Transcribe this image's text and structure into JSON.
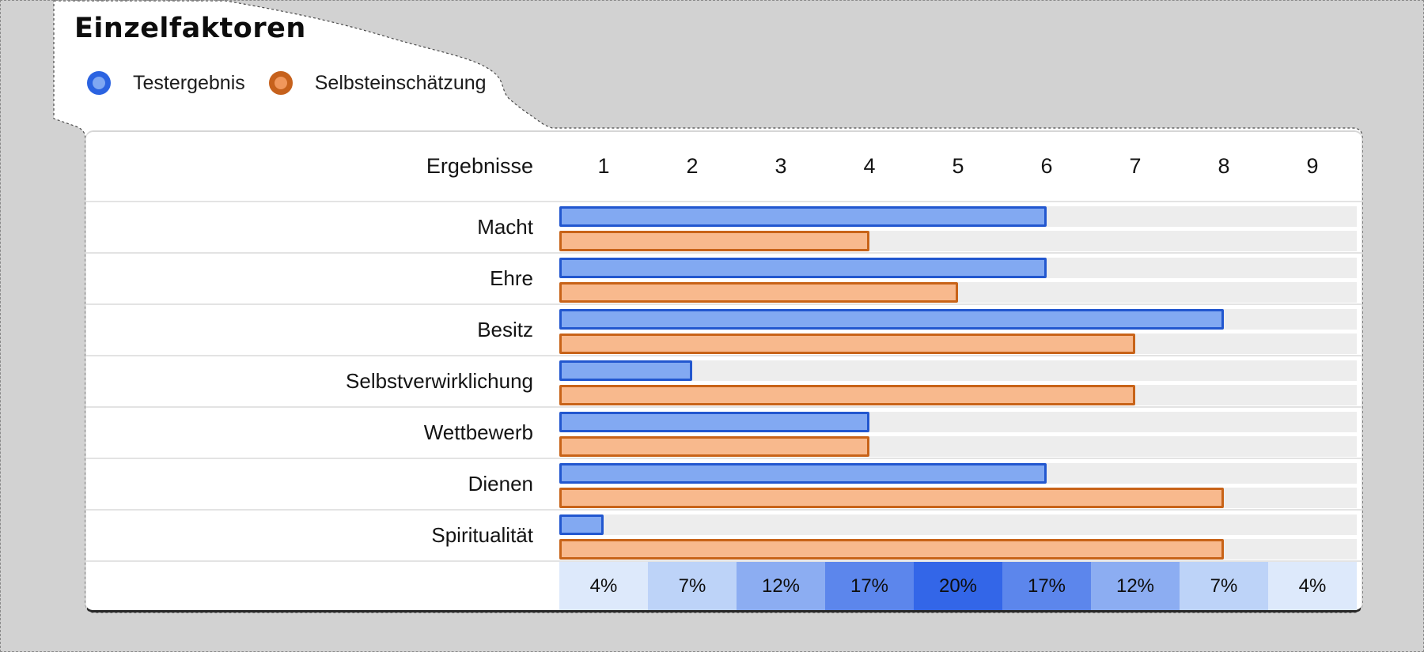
{
  "title": "Einzelfaktoren",
  "legend": [
    {
      "label": "Testergebnis",
      "ring": "#2b63e1",
      "fill": "#7fa7f2"
    },
    {
      "label": "Selbsteinschätzung",
      "ring": "#c6611c",
      "fill": "#f0975c"
    }
  ],
  "header": {
    "label": "Ergebnisse"
  },
  "chart_data": {
    "type": "bar",
    "title": "Einzelfaktoren",
    "orientation": "horizontal",
    "categories": [
      "Macht",
      "Ehre",
      "Besitz",
      "Selbstverwirklichung",
      "Wettbewerb",
      "Dienen",
      "Spiritualität"
    ],
    "series": [
      {
        "name": "Testergebnis",
        "values": [
          6,
          6,
          8,
          2,
          4,
          6,
          1
        ],
        "fill": "#82a9f2",
        "border": "#2257cf"
      },
      {
        "name": "Selbsteinschätzung",
        "values": [
          4,
          5,
          7,
          7,
          4,
          8,
          8
        ],
        "fill": "#f8b98d",
        "border": "#c86318"
      }
    ],
    "x_axis": {
      "label": "Ergebnisse",
      "ticks": [
        "1",
        "2",
        "3",
        "4",
        "5",
        "6",
        "7",
        "8",
        "9"
      ],
      "range": [
        0.5,
        9.5
      ]
    },
    "grid": false,
    "legend_position": "top-left"
  },
  "distribution": {
    "labels": [
      "4%",
      "7%",
      "12%",
      "17%",
      "20%",
      "17%",
      "12%",
      "7%",
      "4%"
    ],
    "cell_colors": [
      "#dde9fb",
      "#bdd3f8",
      "#8cadf2",
      "#5c86ec",
      "#3366e8",
      "#5c86ec",
      "#8cadf2",
      "#bdd3f8",
      "#dde9fb"
    ]
  },
  "colors": {
    "background": "#d2d2d2",
    "card_background": "#ffffff",
    "bar_track": "#ededed",
    "row_separator": "#e3e3e3",
    "card_bottom_border": "#272727"
  }
}
